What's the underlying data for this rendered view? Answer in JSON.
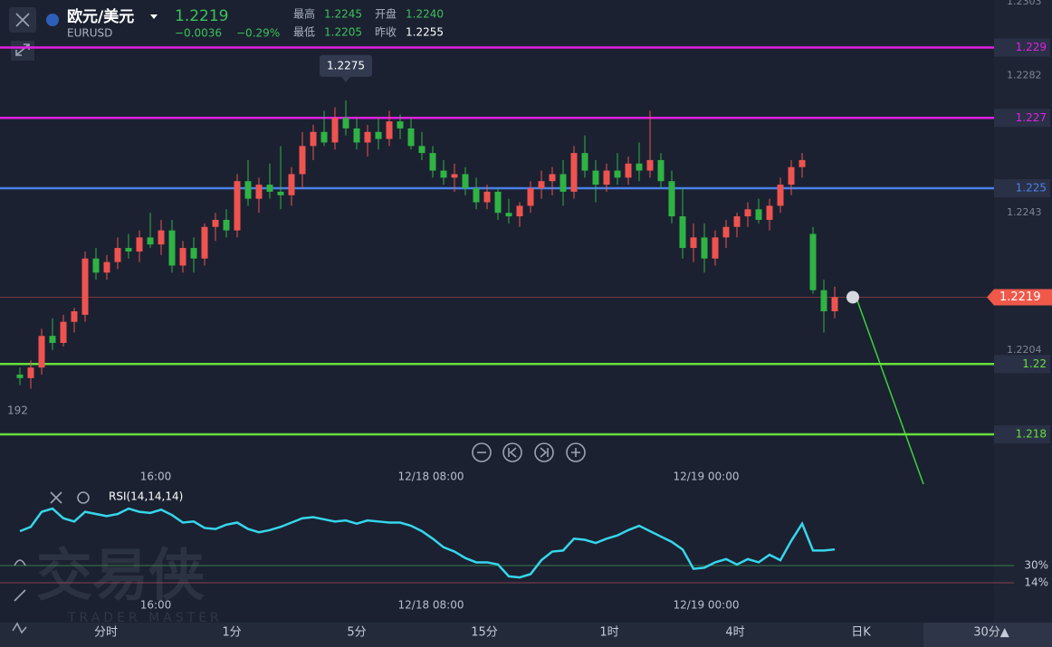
{
  "header": {
    "symbol_name": "欧元/美元",
    "symbol_code": "EURUSD",
    "price": "1.2219",
    "change": "−0.0036",
    "change_percent": "−0.29%",
    "stats": [
      {
        "label": "最高",
        "value": "1.2245"
      },
      {
        "label": "开盘",
        "value": "1.2240"
      },
      {
        "label": "最低",
        "value": "1.2205"
      },
      {
        "label": "昨收",
        "value": "1.2255"
      }
    ]
  },
  "price_chart": {
    "type": "candlestick",
    "ylim": [
      1.2171,
      1.2303
    ],
    "yticks": [
      1.2303,
      1.2282,
      1.2243,
      1.2204
    ],
    "left_label": "192",
    "up_color": "#ef5350",
    "down_color": "#2fb344",
    "levels": [
      {
        "value": 1.229,
        "color": "#e41ee4"
      },
      {
        "value": 1.227,
        "color": "#e41ee4"
      },
      {
        "value": 1.225,
        "color": "#4a80e8"
      },
      {
        "value": 1.22,
        "color": "#66e03c"
      },
      {
        "value": 1.218,
        "color": "#66e03c"
      }
    ],
    "current_price": {
      "value": 1.2219,
      "color": "#f0584a"
    },
    "max_marker": {
      "value": 1.2275
    },
    "x_labels": [
      "16:00",
      "12/18 08:00",
      "12/19 00:00"
    ],
    "candles": [
      [
        1.2197,
        1.2199,
        1.2194,
        1.2196
      ],
      [
        1.2196,
        1.2201,
        1.2193,
        1.2199
      ],
      [
        1.2199,
        1.221,
        1.2197,
        1.2208
      ],
      [
        1.2208,
        1.2213,
        1.2204,
        1.2206
      ],
      [
        1.2206,
        1.2214,
        1.2205,
        1.2212
      ],
      [
        1.2212,
        1.2216,
        1.2209,
        1.2215
      ],
      [
        1.2214,
        1.2232,
        1.2212,
        1.223
      ],
      [
        1.223,
        1.2233,
        1.2224,
        1.2226
      ],
      [
        1.2226,
        1.2231,
        1.2224,
        1.2229
      ],
      [
        1.2229,
        1.2236,
        1.2227,
        1.2233
      ],
      [
        1.2233,
        1.2237,
        1.223,
        1.2232
      ],
      [
        1.2232,
        1.2238,
        1.2229,
        1.2236
      ],
      [
        1.2236,
        1.2243,
        1.2233,
        1.2234
      ],
      [
        1.2234,
        1.2241,
        1.2231,
        1.2238
      ],
      [
        1.2238,
        1.2241,
        1.2226,
        1.2228
      ],
      [
        1.2228,
        1.2235,
        1.2226,
        1.2233
      ],
      [
        1.2233,
        1.2236,
        1.2226,
        1.223
      ],
      [
        1.223,
        1.224,
        1.2228,
        1.2239
      ],
      [
        1.2239,
        1.2243,
        1.2235,
        1.2241
      ],
      [
        1.2241,
        1.2244,
        1.2236,
        1.2238
      ],
      [
        1.2238,
        1.2254,
        1.2236,
        1.2252
      ],
      [
        1.2252,
        1.2258,
        1.2245,
        1.2247
      ],
      [
        1.2247,
        1.2253,
        1.2243,
        1.2251
      ],
      [
        1.2251,
        1.2257,
        1.2247,
        1.2249
      ],
      [
        1.2249,
        1.2262,
        1.2244,
        1.2248
      ],
      [
        1.2248,
        1.2256,
        1.2245,
        1.2254
      ],
      [
        1.2254,
        1.2266,
        1.225,
        1.2262
      ],
      [
        1.2262,
        1.2268,
        1.2258,
        1.2266
      ],
      [
        1.2266,
        1.2272,
        1.2262,
        1.2263
      ],
      [
        1.2263,
        1.2273,
        1.2261,
        1.227
      ],
      [
        1.227,
        1.2275,
        1.2265,
        1.2267
      ],
      [
        1.2267,
        1.227,
        1.2261,
        1.2263
      ],
      [
        1.2263,
        1.2268,
        1.2259,
        1.2266
      ],
      [
        1.2266,
        1.227,
        1.2261,
        1.2264
      ],
      [
        1.2264,
        1.2272,
        1.2262,
        1.2269
      ],
      [
        1.2269,
        1.2271,
        1.2264,
        1.2267
      ],
      [
        1.2267,
        1.227,
        1.2261,
        1.2262
      ],
      [
        1.2262,
        1.2266,
        1.2258,
        1.226
      ],
      [
        1.226,
        1.2262,
        1.2253,
        1.2255
      ],
      [
        1.2255,
        1.2258,
        1.2251,
        1.2253
      ],
      [
        1.2253,
        1.2257,
        1.2249,
        1.2254
      ],
      [
        1.2254,
        1.2256,
        1.2248,
        1.225
      ],
      [
        1.225,
        1.2253,
        1.2244,
        1.2246
      ],
      [
        1.2246,
        1.2251,
        1.2244,
        1.2249
      ],
      [
        1.2249,
        1.225,
        1.2241,
        1.2243
      ],
      [
        1.2243,
        1.2247,
        1.224,
        1.2242
      ],
      [
        1.2242,
        1.2246,
        1.2239,
        1.2245
      ],
      [
        1.2245,
        1.2252,
        1.2243,
        1.225
      ],
      [
        1.225,
        1.2255,
        1.2247,
        1.2252
      ],
      [
        1.2252,
        1.2256,
        1.2248,
        1.2254
      ],
      [
        1.2254,
        1.2258,
        1.2245,
        1.2249
      ],
      [
        1.2249,
        1.2262,
        1.2247,
        1.226
      ],
      [
        1.226,
        1.2265,
        1.2253,
        1.2255
      ],
      [
        1.2255,
        1.2258,
        1.2246,
        1.2251
      ],
      [
        1.2251,
        1.2257,
        1.2249,
        1.2255
      ],
      [
        1.2255,
        1.226,
        1.2251,
        1.2253
      ],
      [
        1.2253,
        1.2259,
        1.2251,
        1.2257
      ],
      [
        1.2257,
        1.2263,
        1.2252,
        1.2255
      ],
      [
        1.2255,
        1.2272,
        1.2253,
        1.2258
      ],
      [
        1.2258,
        1.226,
        1.225,
        1.2252
      ],
      [
        1.2252,
        1.2255,
        1.224,
        1.2242
      ],
      [
        1.2242,
        1.225,
        1.223,
        1.2233
      ],
      [
        1.2233,
        1.224,
        1.2229,
        1.2236
      ],
      [
        1.2236,
        1.224,
        1.2226,
        1.223
      ],
      [
        1.223,
        1.2238,
        1.2228,
        1.2236
      ],
      [
        1.2236,
        1.2241,
        1.2233,
        1.2239
      ],
      [
        1.2239,
        1.2243,
        1.2236,
        1.2242
      ],
      [
        1.2242,
        1.2246,
        1.2239,
        1.2244
      ],
      [
        1.2244,
        1.2247,
        1.224,
        1.2241
      ],
      [
        1.2241,
        1.2247,
        1.2238,
        1.2245
      ],
      [
        1.2245,
        1.2253,
        1.2243,
        1.2251
      ],
      [
        1.2251,
        1.2258,
        1.2248,
        1.2256
      ],
      [
        1.2256,
        1.226,
        1.2253,
        1.2258
      ],
      [
        1.2237,
        1.2239,
        1.222,
        1.2221
      ],
      [
        1.2221,
        1.2224,
        1.2209,
        1.2215
      ],
      [
        1.2215,
        1.2222,
        1.2213,
        1.2219
      ]
    ]
  },
  "rsi": {
    "type": "line",
    "name": "RSI(14,14,14)",
    "color": "#36d6ea",
    "ylim": [
      9,
      89
    ],
    "yticks": [
      {
        "value": 30,
        "label": "30%"
      },
      {
        "value": 14,
        "label": "14%"
      }
    ],
    "x_labels": [
      "16:00",
      "12/18 08:00",
      "12/19 00:00"
    ],
    "values": [
      62,
      66,
      80,
      83,
      74,
      71,
      80,
      78,
      76,
      78,
      83,
      80,
      79,
      82,
      77,
      70,
      71,
      65,
      64,
      68,
      70,
      64,
      61,
      63,
      66,
      70,
      74,
      75,
      73,
      71,
      72,
      69,
      72,
      71,
      70,
      70,
      67,
      62,
      55,
      47,
      43,
      37,
      33,
      33,
      31,
      20,
      19,
      22,
      35,
      43,
      44,
      55,
      54,
      51,
      55,
      58,
      63,
      67,
      62,
      57,
      52,
      45,
      27,
      28,
      33,
      36,
      31,
      36,
      33,
      40,
      35,
      53,
      69,
      44,
      44,
      45
    ]
  },
  "tabs": [
    "分时",
    "1分",
    "5分",
    "15分",
    "1时",
    "4时",
    "日K",
    "30分▲"
  ],
  "watermark": {
    "title": "交易侠",
    "subtitle": "TRADER MASTER"
  }
}
